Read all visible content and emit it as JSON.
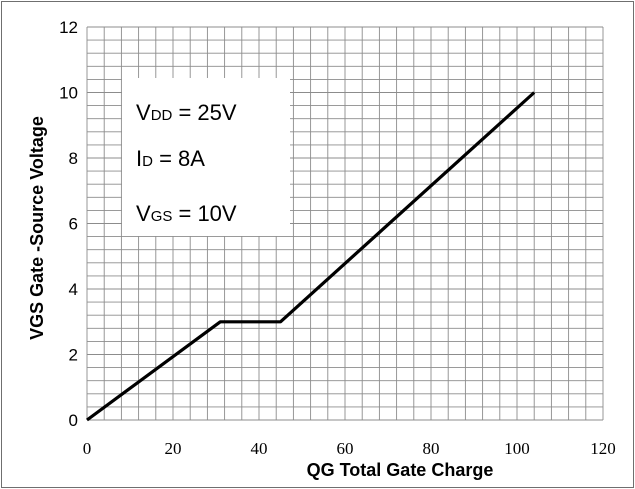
{
  "chart_data": {
    "type": "line",
    "title": "",
    "xlabel": "QG Total Gate Charge",
    "ylabel": "VGS  Gate -Source Voltage",
    "xlim": [
      0,
      120
    ],
    "ylim": [
      0,
      12
    ],
    "x_ticks": [
      "0",
      "20",
      "40",
      "60",
      "80",
      "100",
      "120"
    ],
    "y_ticks": [
      "0",
      "2",
      "4",
      "6",
      "8",
      "10",
      "12"
    ],
    "grid": true,
    "series": [
      {
        "color": "#000000",
        "points": [
          [
            0,
            0
          ],
          [
            31,
            3
          ],
          [
            45,
            3
          ],
          [
            104,
            10
          ]
        ]
      }
    ],
    "annotations": [
      {
        "main": "V",
        "sub": "DD",
        "rest": " = 25V"
      },
      {
        "main": "I",
        "sub": "D",
        "rest": " = 8A"
      },
      {
        "main": "V",
        "sub": "GS",
        "rest": " = 10V"
      }
    ]
  }
}
